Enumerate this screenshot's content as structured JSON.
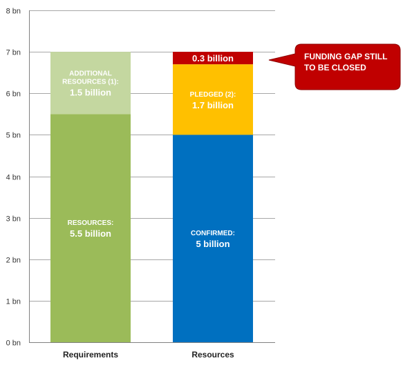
{
  "chart_data": {
    "type": "bar",
    "stacked": true,
    "categories": [
      "Requirements",
      "Resources"
    ],
    "yaxis": {
      "ticks": [
        0,
        1,
        2,
        3,
        4,
        5,
        6,
        7,
        8
      ],
      "tick_labels": [
        "0 bn",
        "1 bn",
        "2 bn",
        "3 bn",
        "4 bn",
        "5 bn",
        "6 bn",
        "7 bn",
        "8 bn"
      ],
      "ylim": [
        0,
        8
      ],
      "grid": true
    },
    "series": [
      {
        "category": "Requirements",
        "segments": [
          {
            "caption": "RESOURCES:",
            "value_label": "5.5 billion",
            "value": 5.5,
            "color": "#9bbb59"
          },
          {
            "caption": "ADDITIONAL RESOURCES (1):",
            "caption_lines": [
              "ADDITIONAL",
              "RESOURCES (1):"
            ],
            "value_label": "1.5 billion",
            "value": 1.5,
            "color": "#c4d7a0"
          }
        ]
      },
      {
        "category": "Resources",
        "segments": [
          {
            "caption": "CONFIRMED:",
            "value_label": "5 billion",
            "value": 5,
            "color": "#0070c0"
          },
          {
            "caption": "PLEDGED (2):",
            "value_label": "1.7 billion",
            "value": 1.7,
            "color": "#ffc000"
          },
          {
            "caption": "",
            "value_label": "0.3 billion",
            "value": 0.3,
            "color": "#c00000"
          }
        ]
      }
    ],
    "callout": {
      "lines": [
        "FUNDING GAP STILL",
        "TO BE CLOSED"
      ],
      "color": "#c00000",
      "points_to": "Resources"
    },
    "grid_color": "#a6a6a6",
    "axis_color": "#808080"
  }
}
